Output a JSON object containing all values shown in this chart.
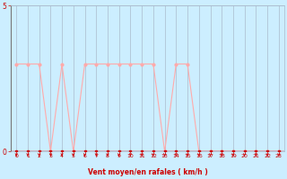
{
  "x": [
    0,
    1,
    2,
    3,
    4,
    5,
    6,
    7,
    8,
    9,
    10,
    11,
    12,
    13,
    14,
    15,
    16,
    17,
    18,
    19,
    20,
    21,
    22,
    23
  ],
  "y_moyen": [
    0,
    0,
    0,
    0,
    0,
    0,
    0,
    0,
    0,
    0,
    0,
    0,
    0,
    0,
    0,
    0,
    0,
    0,
    0,
    0,
    0,
    0,
    0,
    0
  ],
  "y_rafales": [
    3,
    3,
    3,
    0,
    3,
    0,
    3,
    3,
    3,
    3,
    3,
    3,
    3,
    0,
    3,
    3,
    0,
    0,
    0,
    0,
    0,
    0,
    0,
    0
  ],
  "color_moyen": "#cc0000",
  "color_rafales": "#ffaaaa",
  "background_color": "#cceeff",
  "grid_color": "#aabbcc",
  "xlabel": "Vent moyen/en rafales ( km/h )",
  "xlabel_color": "#cc0000",
  "tick_color": "#cc0000",
  "ylim": [
    0,
    5
  ],
  "xlim": [
    -0.5,
    23.5
  ],
  "yticks": [
    0,
    5
  ],
  "xticks": [
    0,
    1,
    2,
    3,
    4,
    5,
    6,
    7,
    8,
    9,
    10,
    11,
    12,
    13,
    14,
    15,
    16,
    17,
    18,
    19,
    20,
    21,
    22,
    23
  ]
}
